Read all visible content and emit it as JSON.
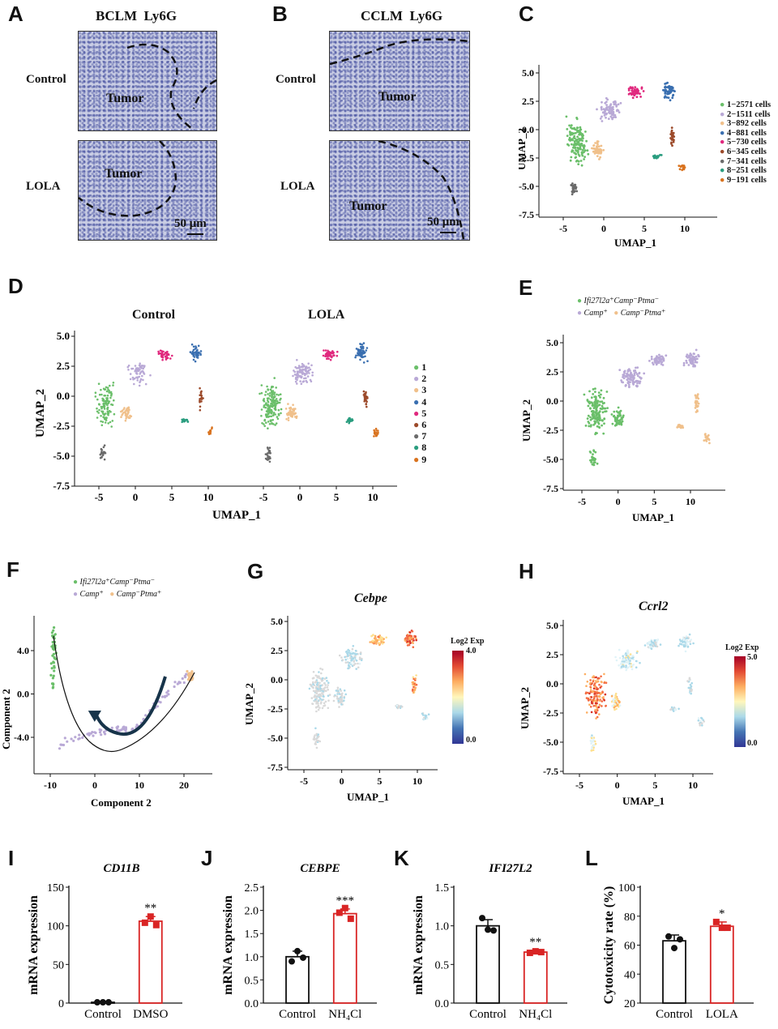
{
  "panels": {
    "A": {
      "letter": "A",
      "title": "BCLM  Ly6G",
      "row1": "Control",
      "row2": "LOLA",
      "tumor1": "Tumor",
      "tumor2": "Tumor",
      "scale": "50 μm"
    },
    "B": {
      "letter": "B",
      "title": "CCLM  Ly6G",
      "row1": "Control",
      "row2": "LOLA",
      "tumor1": "Tumor",
      "tumor2": "Tumor",
      "scale": "50 μm"
    },
    "C": {
      "letter": "C",
      "xlabel": "UMAP_1",
      "ylabel": "UMAP_2",
      "legend": [
        "1−2571  cells",
        "2−1511  cells",
        "3−892  cells",
        "4−881  cells",
        "5−730  cells",
        "6−345  cells",
        "7−341  cells",
        "8−251  cells",
        "9−191  cells"
      ]
    },
    "D": {
      "letter": "D",
      "title_left": "Control",
      "title_right": "LOLA",
      "xlabel": "UMAP_1",
      "ylabel": "UMAP_2",
      "legend": [
        "1",
        "2",
        "3",
        "4",
        "5",
        "6",
        "7",
        "8",
        "9"
      ]
    },
    "E": {
      "letter": "E",
      "legend": [
        "Ifi27l2a⁺Camp⁻Ptma⁻",
        "Camp⁺",
        "Camp⁻Ptma⁺"
      ],
      "xlabel": "UMAP_1",
      "ylabel": "UMAP_2"
    },
    "F": {
      "letter": "F",
      "legend": [
        "Ifi27l2a⁺Camp⁻Ptma⁻",
        "Camp⁺",
        "Camp⁻Ptma⁺"
      ],
      "xlabel": "Component 2",
      "ylabel": "Component 2"
    },
    "G": {
      "letter": "G",
      "title": "Cebpe",
      "colorbar_title": "Log2 Exp",
      "cb_max": "4.0",
      "cb_min": "0.0",
      "xlabel": "UMAP_1",
      "ylabel": "UMAP_2"
    },
    "H": {
      "letter": "H",
      "title": "Ccrl2",
      "colorbar_title": "Log2 Exp",
      "cb_max": "5.0",
      "cb_min": "0.0",
      "xlabel": "UMAP_1",
      "ylabel": "UMAP_2"
    },
    "I": {
      "letter": "I"
    },
    "J": {
      "letter": "J"
    },
    "K": {
      "letter": "K"
    },
    "L": {
      "letter": "L"
    }
  },
  "colors": {
    "c1": "#6bbf6a",
    "c2": "#b9a9d6",
    "c3": "#f0c08b",
    "c4": "#3a6fb0",
    "c5": "#e0297e",
    "c6": "#9c4a2a",
    "c7": "#6b6b6b",
    "c8": "#2a9d7f",
    "c9": "#d9731f",
    "ctrl": "#111111",
    "treat": "#d92424"
  },
  "chart_data": [
    {
      "type": "scatter",
      "id": "C",
      "title": "",
      "xlabel": "UMAP_1",
      "ylabel": "UMAP_2",
      "xlim": [
        -8,
        14
      ],
      "ylim": [
        -7.5,
        6
      ],
      "xticks": [
        "-5",
        "0",
        "5",
        "10"
      ],
      "yticks": [
        "5.0",
        "2.5",
        "0.0",
        "-2.5",
        "-5.0",
        "-7.5"
      ],
      "series": [
        {
          "name": "1",
          "count": 2571
        },
        {
          "name": "2",
          "count": 1511
        },
        {
          "name": "3",
          "count": 892
        },
        {
          "name": "4",
          "count": 881
        },
        {
          "name": "5",
          "count": 730
        },
        {
          "name": "6",
          "count": 345
        },
        {
          "name": "7",
          "count": 341
        },
        {
          "name": "8",
          "count": 251
        },
        {
          "name": "9",
          "count": 191
        }
      ]
    },
    {
      "type": "scatter",
      "id": "D",
      "xlabel": "UMAP_1",
      "ylabel": "UMAP_2",
      "xticks": [
        "-5",
        "0",
        "5",
        "10"
      ],
      "yticks": [
        "5.0",
        "2.5",
        "0.0",
        "-2.5",
        "-5.0",
        "-7.5"
      ]
    },
    {
      "type": "scatter",
      "id": "E",
      "xlabel": "UMAP_1",
      "ylabel": "UMAP_2",
      "xticks": [
        "-5",
        "0",
        "5",
        "10"
      ],
      "yticks": [
        "5.0",
        "2.5",
        "0.0",
        "-2.5",
        "-5.0",
        "-7.5"
      ]
    },
    {
      "type": "scatter",
      "id": "F",
      "xlabel": "Component 2",
      "ylabel": "Component 2",
      "xticks": [
        "-10",
        "0",
        "10",
        "20"
      ],
      "yticks": [
        "4.0",
        "0.0",
        "-4.0"
      ]
    },
    {
      "type": "scatter",
      "id": "G",
      "xlabel": "UMAP_1",
      "ylabel": "UMAP_2",
      "xticks": [
        "-5",
        "0",
        "5",
        "10"
      ],
      "yticks": [
        "5.0",
        "2.5",
        "0.0",
        "-2.5",
        "-5.0",
        "-7.5"
      ]
    },
    {
      "type": "scatter",
      "id": "H",
      "xlabel": "UMAP_1",
      "ylabel": "UMAP_2",
      "xticks": [
        "-5",
        "0",
        "5",
        "10"
      ],
      "yticks": [
        "5.0",
        "2.5",
        "0.0",
        "-2.5",
        "-5.0",
        "-7.5"
      ]
    },
    {
      "type": "bar",
      "id": "I",
      "title": "CD11B",
      "ylabel": "mRNA expression",
      "categories": [
        "Control",
        "DMSO"
      ],
      "values": [
        1,
        106
      ],
      "errors": [
        1,
        6
      ],
      "points": [
        [
          1,
          1,
          1
        ],
        [
          104,
          112,
          101
        ]
      ],
      "ylim": [
        0,
        150
      ],
      "yticks": [
        "0",
        "50",
        "100",
        "150"
      ],
      "significance": "**"
    },
    {
      "type": "bar",
      "id": "J",
      "title": "CEBPE",
      "ylabel": "mRNA expression",
      "categories": [
        "Control",
        "NH₄Cl"
      ],
      "values": [
        1.0,
        1.93
      ],
      "errors": [
        0.12,
        0.1
      ],
      "points": [
        [
          0.9,
          1.12,
          0.98
        ],
        [
          1.95,
          2.05,
          1.82
        ]
      ],
      "ylim": [
        0,
        2.5
      ],
      "yticks": [
        "0.0",
        "0.5",
        "1.0",
        "1.5",
        "2.0",
        "2.5"
      ],
      "significance": "***"
    },
    {
      "type": "bar",
      "id": "K",
      "title": "IFI27L2",
      "ylabel": "mRNA expression",
      "categories": [
        "Control",
        "NH₄Cl"
      ],
      "values": [
        1.0,
        0.66
      ],
      "errors": [
        0.08,
        0.02
      ],
      "points": [
        [
          1.1,
          0.95,
          0.94
        ],
        [
          0.65,
          0.67,
          0.66
        ]
      ],
      "ylim": [
        0,
        1.5
      ],
      "yticks": [
        "0.0",
        "0.5",
        "1.0",
        "1.5"
      ],
      "significance": "**"
    },
    {
      "type": "bar",
      "id": "L",
      "title": "",
      "ylabel": "Cytotoxicity rate (%)",
      "categories": [
        "Control",
        "LOLA"
      ],
      "values": [
        63,
        73
      ],
      "errors": [
        4,
        3
      ],
      "points": [
        [
          66,
          58,
          64
        ],
        [
          76,
          72,
          72
        ]
      ],
      "ylim": [
        20,
        100
      ],
      "yticks": [
        "20",
        "40",
        "60",
        "80",
        "100"
      ],
      "significance": "*"
    }
  ]
}
